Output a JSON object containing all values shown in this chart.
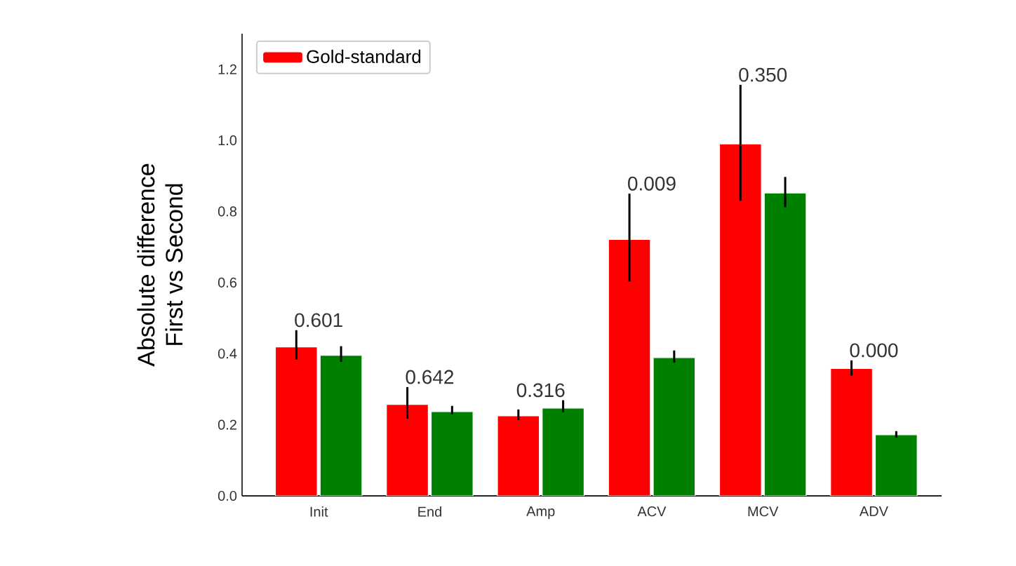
{
  "chart_data": {
    "type": "bar",
    "ylabel": "Absolute difference\nFirst vs Second",
    "categories": [
      "Init",
      "End",
      "Amp",
      "ACV",
      "MCV",
      "ADV"
    ],
    "series": [
      {
        "name": "Gold-standard",
        "color": "#ff0000",
        "values": [
          0.419,
          0.257,
          0.225,
          0.721,
          0.99,
          0.358
        ],
        "errors": [
          [
            0.383,
            0.466
          ],
          [
            0.217,
            0.306
          ],
          [
            0.213,
            0.243
          ],
          [
            0.603,
            0.85
          ],
          [
            0.83,
            1.156
          ],
          [
            0.338,
            0.381
          ]
        ]
      },
      {
        "color": "#008000",
        "values": [
          0.395,
          0.237,
          0.247,
          0.389,
          0.852,
          0.172
        ],
        "errors": [
          [
            0.377,
            0.421
          ],
          [
            0.229,
            0.253
          ],
          [
            0.235,
            0.269
          ],
          [
            0.375,
            0.409
          ],
          [
            0.812,
            0.897
          ],
          [
            0.164,
            0.182
          ]
        ]
      }
    ],
    "ylim": [
      0,
      1.3
    ],
    "yticks": [
      {
        "value": 0,
        "label": "0.0"
      },
      {
        "value": 0.2,
        "label": "0.2"
      },
      {
        "value": 0.4,
        "label": "0.4"
      },
      {
        "value": 0.6,
        "label": "0.6"
      },
      {
        "value": 0.8,
        "label": "0.8"
      },
      {
        "value": 1,
        "label": "1.0"
      },
      {
        "value": 1.2,
        "label": "1.2"
      }
    ],
    "annotations": [
      "0.601",
      "0.642",
      "0.316",
      "0.009",
      "0.350",
      "0.000"
    ],
    "grid": false,
    "legend": "top left"
  }
}
